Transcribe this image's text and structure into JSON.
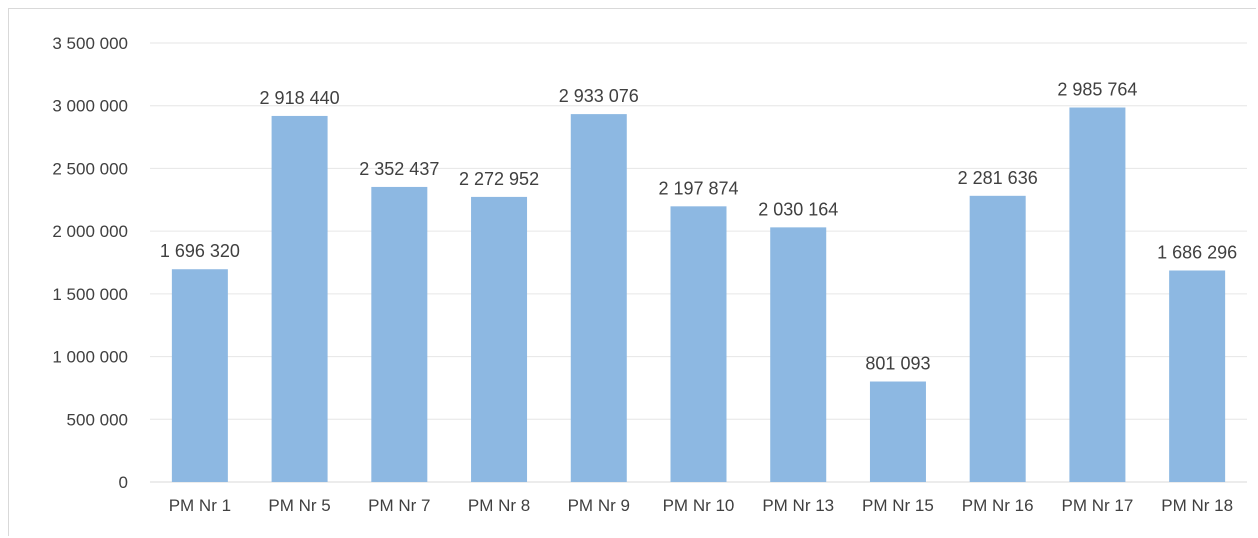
{
  "chart_data": {
    "type": "bar",
    "title": "",
    "xlabel": "",
    "ylabel": "",
    "categories": [
      "PM Nr 1",
      "PM Nr 5",
      "PM Nr 7",
      "PM Nr 8",
      "PM Nr 9",
      "PM Nr 10",
      "PM Nr 13",
      "PM Nr 15",
      "PM Nr 16",
      "PM Nr 17",
      "PM Nr 18"
    ],
    "values": [
      1696320,
      2918440,
      2352437,
      2272952,
      2933076,
      2197874,
      2030164,
      801093,
      2281636,
      2985764,
      1686296
    ],
    "data_labels": [
      "1 696 320",
      "2 918 440",
      "2 352 437",
      "2 272 952",
      "2 933 076",
      "2 197 874",
      "2 030 164",
      "801 093",
      "2 281 636",
      "2 985 764",
      "1 686 296"
    ],
    "y_ticks": [
      0,
      500000,
      1000000,
      1500000,
      2000000,
      2500000,
      3000000,
      3500000
    ],
    "y_tick_labels": [
      "0",
      "500 000",
      "1 000 000",
      "1 500 000",
      "2 000 000",
      "2 500 000",
      "3 000 000",
      "3 500 000"
    ],
    "ylim": [
      0,
      3500000
    ],
    "grid": true,
    "legend": "none",
    "bar_color": "#8db8e2",
    "grid_color": "#e6e6e6",
    "text_color": "#404040"
  }
}
